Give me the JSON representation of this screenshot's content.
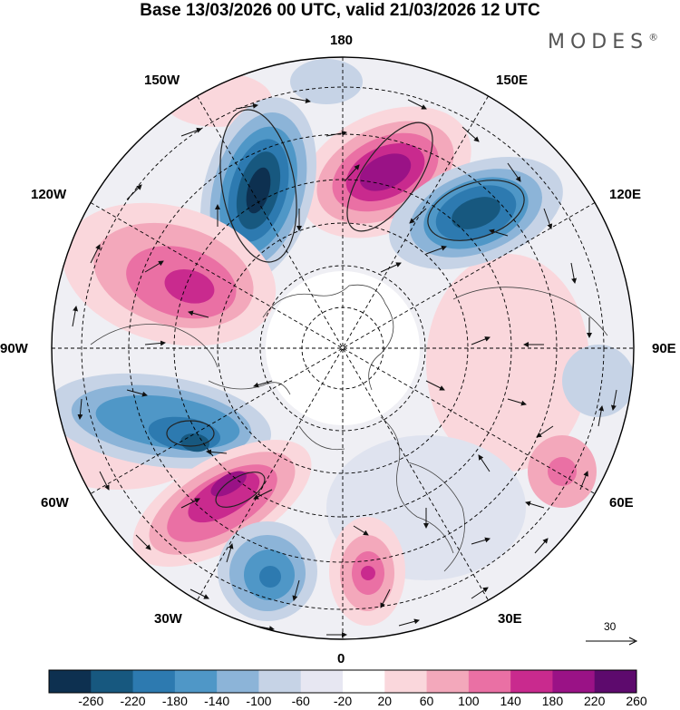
{
  "header": {
    "title": "Base 13/03/2026 00 UTC, valid 21/03/2026 12 UTC",
    "brand": "MODES",
    "brand_mark": "®"
  },
  "map": {
    "projection": "north-polar-stereographic",
    "longitude_labels": {
      "top": "180",
      "upper_left": "150W",
      "upper_right": "150E",
      "left_upper": "120W",
      "right_upper": "120E",
      "left": "90W",
      "right": "90E",
      "left_lower": "60W",
      "right_lower": "60E",
      "lower_left": "30W",
      "lower_right": "30E",
      "bottom": "0"
    },
    "wind_reference": {
      "value": "30"
    }
  },
  "colorbar": {
    "labels": [
      "-260",
      "-220",
      "-180",
      "-140",
      "-100",
      "-60",
      "-20",
      "20",
      "60",
      "100",
      "140",
      "180",
      "220",
      "260"
    ],
    "colors": [
      "#0d3050",
      "#17587f",
      "#2d7ab0",
      "#4f97c7",
      "#8cb4d8",
      "#c6d3e6",
      "#e7e7f2",
      "#ffffff",
      "#fad7dc",
      "#f3a8bb",
      "#ea70a4",
      "#c92a8e",
      "#9a1286",
      "#5d0a6d"
    ]
  },
  "anomaly_centers": [
    {
      "sign": "positive",
      "intensity": 4,
      "lon_region": "165E"
    },
    {
      "sign": "negative",
      "intensity": 5,
      "lon_region": "160W"
    },
    {
      "sign": "negative",
      "intensity": 4,
      "lon_region": "130E"
    },
    {
      "sign": "positive",
      "intensity": 3,
      "lon_region": "110W"
    },
    {
      "sign": "negative",
      "intensity": 4,
      "lon_region": "70W"
    },
    {
      "sign": "positive",
      "intensity": 4,
      "lon_region": "45W"
    },
    {
      "sign": "negative",
      "intensity": 3,
      "lon_region": "20W"
    },
    {
      "sign": "positive",
      "intensity": 3,
      "lon_region": "0"
    }
  ]
}
